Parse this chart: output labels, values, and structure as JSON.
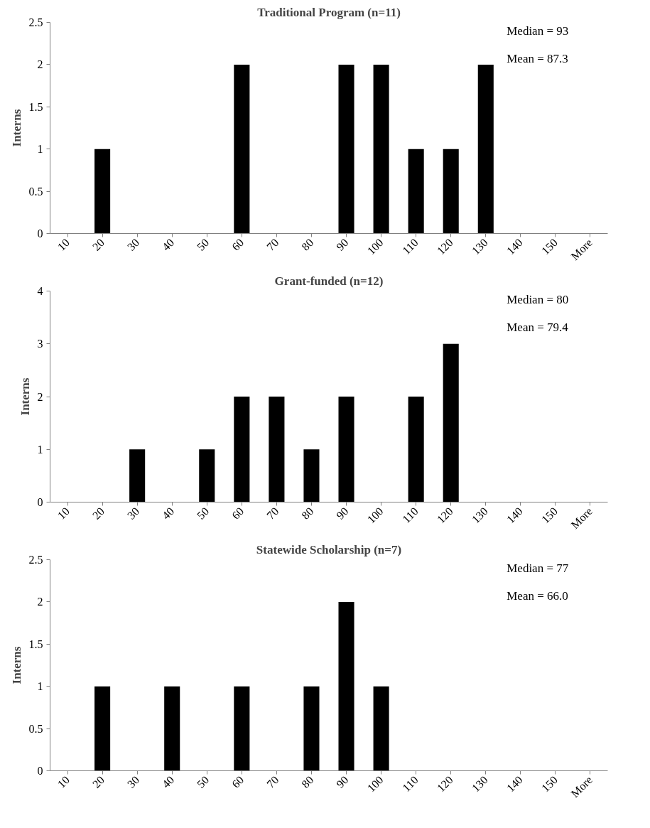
{
  "chart_data": [
    {
      "type": "bar",
      "title": "Traditional Program (n=11)",
      "ylabel": "Interns",
      "categories": [
        "10",
        "20",
        "30",
        "40",
        "50",
        "60",
        "70",
        "80",
        "90",
        "100",
        "110",
        "120",
        "130",
        "140",
        "150",
        "More"
      ],
      "values": [
        0,
        1,
        0,
        0,
        0,
        2,
        0,
        0,
        2,
        2,
        1,
        1,
        2,
        0,
        0,
        0
      ],
      "color": "#000000",
      "ylim": [
        0,
        2.5
      ],
      "yticks": [
        0,
        0.5,
        1,
        1.5,
        2,
        2.5
      ],
      "annotations": [
        "Median = 93",
        "Mean = 87.3"
      ]
    },
    {
      "type": "bar",
      "title": "Grant-funded (n=12)",
      "ylabel": "Interns",
      "categories": [
        "10",
        "20",
        "30",
        "40",
        "50",
        "60",
        "70",
        "80",
        "90",
        "100",
        "110",
        "120",
        "130",
        "140",
        "150",
        "More"
      ],
      "values": [
        0,
        0,
        1,
        0,
        1,
        2,
        2,
        1,
        2,
        0,
        2,
        3,
        0,
        0,
        0,
        0
      ],
      "color": "#000000",
      "ylim": [
        0,
        4
      ],
      "yticks": [
        0,
        1,
        2,
        3,
        4
      ],
      "annotations": [
        "Median = 80",
        "Mean = 79.4"
      ]
    },
    {
      "type": "bar",
      "title": "Statewide Scholarship (n=7)",
      "ylabel": "Interns",
      "categories": [
        "10",
        "20",
        "30",
        "40",
        "50",
        "60",
        "70",
        "80",
        "90",
        "100",
        "110",
        "120",
        "130",
        "140",
        "150",
        "More"
      ],
      "values": [
        0,
        1,
        0,
        1,
        0,
        1,
        0,
        1,
        2,
        1,
        0,
        0,
        0,
        0,
        0,
        0
      ],
      "color": "#000000",
      "ylim": [
        0,
        2.5
      ],
      "yticks": [
        0,
        0.5,
        1,
        1.5,
        2,
        2.5
      ],
      "annotations": [
        "Median = 77",
        "Mean = 66.0"
      ]
    }
  ]
}
